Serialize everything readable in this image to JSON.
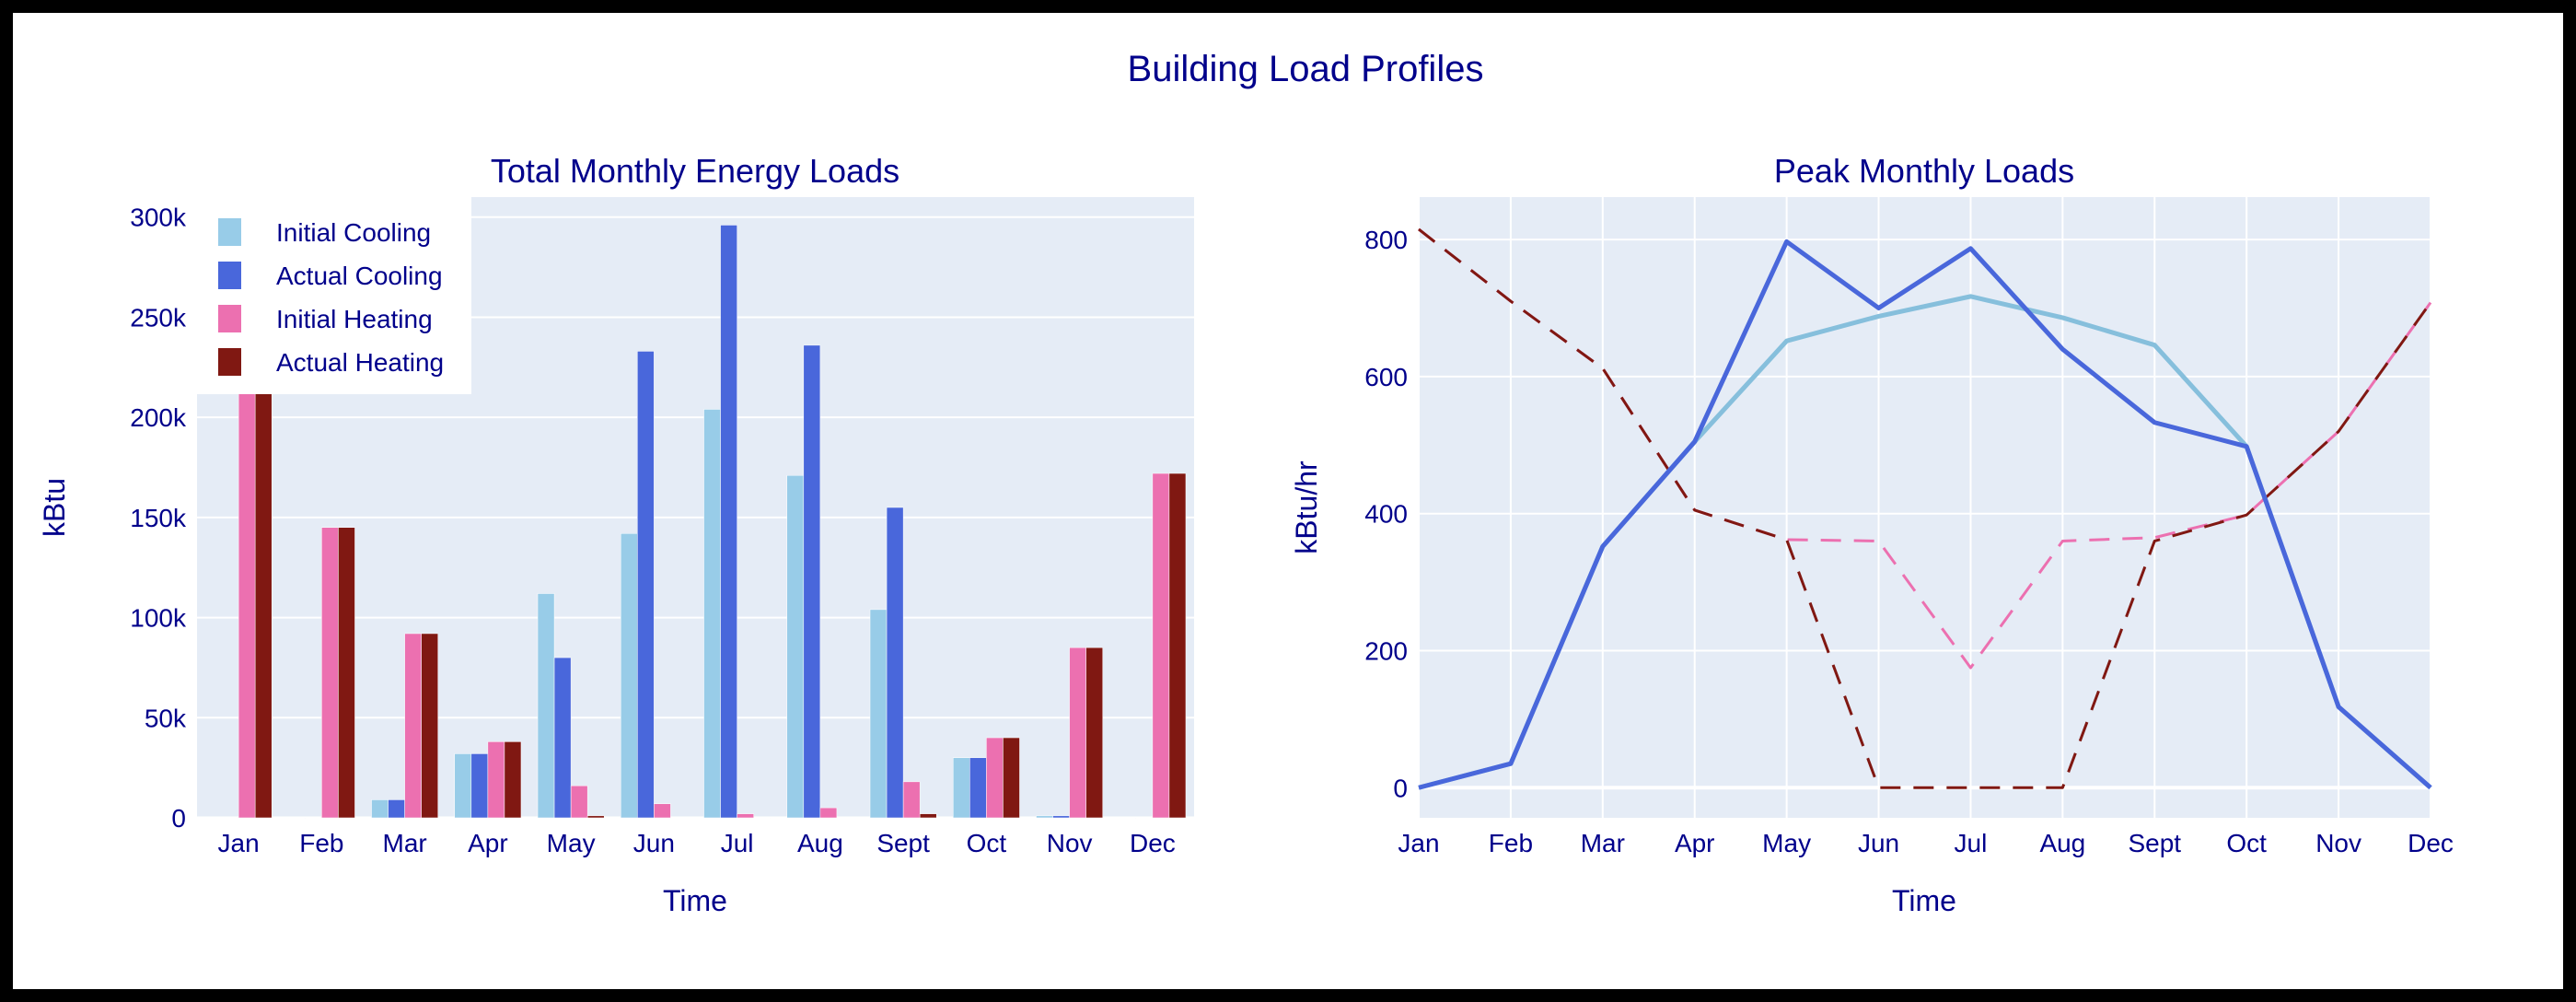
{
  "title": "Building Load Profiles",
  "colors": {
    "initial_cooling_bar": "#98cce8",
    "actual_cooling": "#4967db",
    "initial_heating": "#ec70b0",
    "actual_heating": "#801812",
    "initial_cooling_line": "#86bfdc",
    "text": "#00008b",
    "plot_bg": "#e5ecf6"
  },
  "chart_data": [
    {
      "type": "bar",
      "title": "Total Monthly Energy Loads",
      "xlabel": "Time",
      "ylabel": "kBtu",
      "ylim": [
        0,
        310000
      ],
      "yticks": [
        0,
        50000,
        100000,
        150000,
        200000,
        250000,
        300000
      ],
      "ytick_labels": [
        "0",
        "50k",
        "100k",
        "150k",
        "200k",
        "250k",
        "300k"
      ],
      "categories": [
        "Jan",
        "Feb",
        "Mar",
        "Apr",
        "May",
        "Jun",
        "Jul",
        "Aug",
        "Sept",
        "Oct",
        "Nov",
        "Dec"
      ],
      "legend_position": "top-left",
      "series": [
        {
          "name": "Initial Cooling",
          "color_key": "initial_cooling_bar",
          "values": [
            0,
            0,
            9000,
            32000,
            112000,
            142000,
            204000,
            171000,
            104000,
            30000,
            1000,
            0
          ]
        },
        {
          "name": "Actual Cooling",
          "color_key": "actual_cooling",
          "values": [
            0,
            0,
            9000,
            32000,
            80000,
            233000,
            296000,
            236000,
            155000,
            30000,
            1000,
            0
          ]
        },
        {
          "name": "Initial Heating",
          "color_key": "initial_heating",
          "values": [
            250000,
            145000,
            92000,
            38000,
            16000,
            7000,
            2000,
            5000,
            18000,
            40000,
            85000,
            172000
          ]
        },
        {
          "name": "Actual Heating",
          "color_key": "actual_heating",
          "values": [
            250000,
            145000,
            92000,
            38000,
            1000,
            0,
            0,
            0,
            2000,
            40000,
            85000,
            172000
          ]
        }
      ]
    },
    {
      "type": "line",
      "title": "Peak Monthly Loads",
      "xlabel": "Time",
      "ylabel": "kBtu/hr",
      "ylim": [
        -44,
        862
      ],
      "yticks": [
        0,
        200,
        400,
        600,
        800
      ],
      "ytick_labels": [
        "0",
        "200",
        "400",
        "600",
        "800"
      ],
      "categories": [
        "Jan",
        "Feb",
        "Mar",
        "Apr",
        "May",
        "Jun",
        "Jul",
        "Aug",
        "Sept",
        "Oct",
        "Nov",
        "Dec"
      ],
      "series": [
        {
          "name": "Initial Heating",
          "color_key": "initial_heating",
          "dash": true,
          "values": [
            815,
            710,
            612,
            405,
            362,
            360,
            175,
            360,
            365,
            398,
            520,
            708
          ]
        },
        {
          "name": "Actual Heating",
          "color_key": "actual_heating",
          "dash": true,
          "values": [
            815,
            710,
            612,
            405,
            362,
            0,
            0,
            0,
            360,
            398,
            520,
            708
          ]
        },
        {
          "name": "Initial Cooling",
          "color_key": "initial_cooling_line",
          "dash": false,
          "values": [
            0,
            35,
            352,
            505,
            652,
            688,
            717,
            686,
            646,
            498,
            118,
            0
          ]
        },
        {
          "name": "Actual Cooling",
          "color_key": "actual_cooling",
          "dash": false,
          "values": [
            0,
            35,
            352,
            505,
            797,
            700,
            787,
            640,
            533,
            498,
            118,
            0
          ]
        }
      ]
    }
  ]
}
